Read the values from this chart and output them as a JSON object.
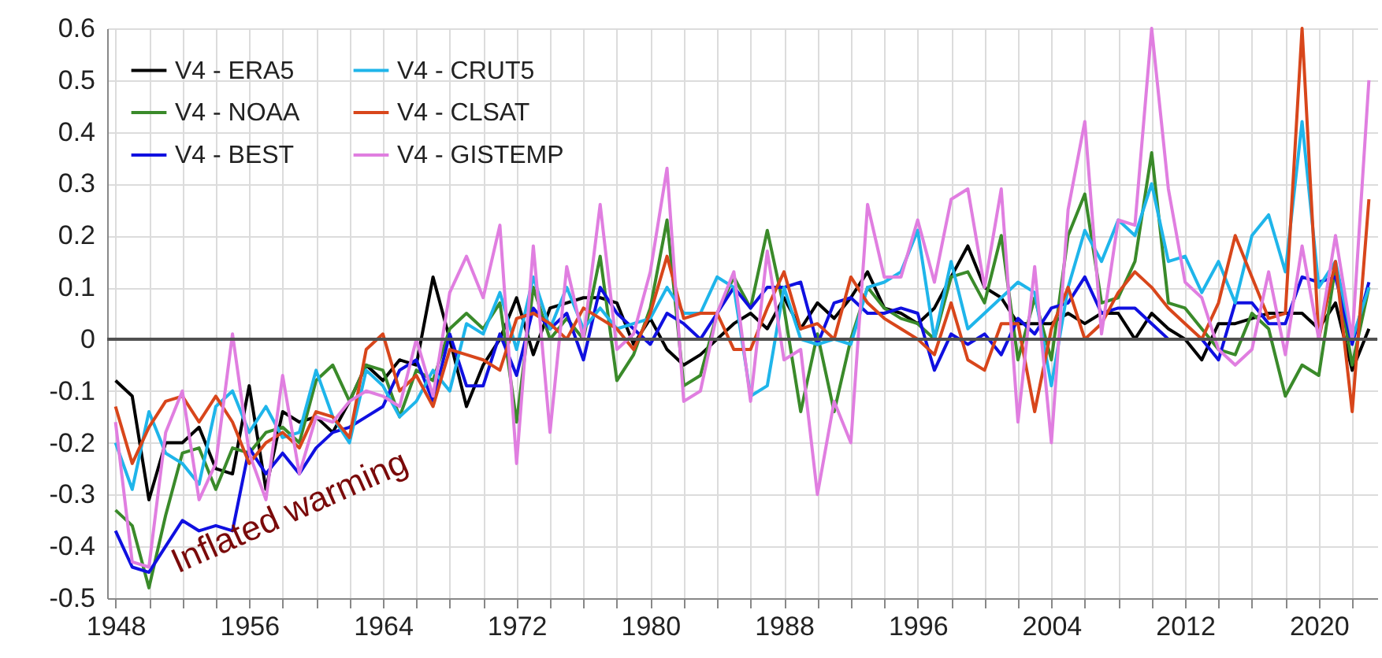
{
  "chart_data": {
    "type": "line",
    "x": [
      1948,
      1949,
      1950,
      1951,
      1952,
      1953,
      1954,
      1955,
      1956,
      1957,
      1958,
      1959,
      1960,
      1961,
      1962,
      1963,
      1964,
      1965,
      1966,
      1967,
      1968,
      1969,
      1970,
      1971,
      1972,
      1973,
      1974,
      1975,
      1976,
      1977,
      1978,
      1979,
      1980,
      1981,
      1982,
      1983,
      1984,
      1985,
      1986,
      1987,
      1988,
      1989,
      1990,
      1991,
      1992,
      1993,
      1994,
      1995,
      1996,
      1997,
      1998,
      1999,
      2000,
      2001,
      2002,
      2003,
      2004,
      2005,
      2006,
      2007,
      2008,
      2009,
      2010,
      2011,
      2012,
      2013,
      2014,
      2015,
      2016,
      2017,
      2018,
      2019,
      2020,
      2021,
      2022,
      2023
    ],
    "series": [
      {
        "name": "V4  - ERA5",
        "color": "#000000",
        "values": [
          -0.08,
          -0.11,
          -0.31,
          -0.2,
          -0.2,
          -0.17,
          -0.25,
          -0.26,
          -0.09,
          -0.29,
          -0.14,
          -0.16,
          -0.15,
          -0.18,
          -0.12,
          -0.05,
          -0.08,
          -0.04,
          -0.05,
          0.12,
          0.0,
          -0.13,
          -0.05,
          0.0,
          0.08,
          -0.03,
          0.06,
          0.07,
          0.08,
          0.08,
          0.07,
          -0.01,
          0.04,
          -0.02,
          -0.05,
          -0.03,
          0.0,
          0.03,
          0.05,
          0.02,
          0.08,
          0.02,
          0.07,
          0.04,
          0.08,
          0.13,
          0.06,
          0.05,
          0.03,
          0.06,
          0.12,
          0.18,
          0.1,
          0.08,
          0.03,
          0.03,
          0.03,
          0.05,
          0.03,
          0.05,
          0.05,
          0.0,
          0.05,
          0.02,
          0.0,
          -0.04,
          0.03,
          0.03,
          0.04,
          0.05,
          0.05,
          0.05,
          0.02,
          0.07,
          -0.06,
          0.02
        ]
      },
      {
        "name": "V4 - NOAA",
        "color": "#3a8a2a",
        "values": [
          -0.33,
          -0.36,
          -0.48,
          -0.34,
          -0.22,
          -0.21,
          -0.29,
          -0.21,
          -0.22,
          -0.18,
          -0.17,
          -0.2,
          -0.08,
          -0.05,
          -0.12,
          -0.05,
          -0.06,
          -0.15,
          -0.06,
          -0.08,
          0.02,
          0.05,
          0.02,
          0.07,
          -0.16,
          0.1,
          0.0,
          0.04,
          0.0,
          0.16,
          -0.08,
          -0.03,
          0.06,
          0.23,
          -0.09,
          -0.07,
          0.05,
          0.12,
          0.06,
          0.21,
          0.06,
          -0.14,
          0.01,
          -0.14,
          0.0,
          0.1,
          0.06,
          0.04,
          0.03,
          0.0,
          0.12,
          0.13,
          0.07,
          0.2,
          -0.04,
          0.08,
          -0.04,
          0.2,
          0.28,
          0.07,
          0.08,
          0.15,
          0.36,
          0.07,
          0.06,
          0.02,
          -0.02,
          -0.03,
          0.05,
          0.02,
          -0.11,
          -0.05,
          -0.07,
          0.14,
          -0.05,
          0.1
        ]
      },
      {
        "name": "V4 - BEST",
        "color": "#1010e0",
        "values": [
          -0.37,
          -0.44,
          -0.45,
          -0.4,
          -0.35,
          -0.37,
          -0.36,
          -0.37,
          -0.21,
          -0.26,
          -0.22,
          -0.26,
          -0.21,
          -0.18,
          -0.17,
          -0.15,
          -0.13,
          -0.06,
          -0.04,
          -0.12,
          0.01,
          -0.09,
          -0.09,
          0.01,
          -0.07,
          0.06,
          0.02,
          0.05,
          -0.04,
          0.1,
          0.05,
          0.02,
          -0.01,
          0.05,
          0.03,
          0.0,
          0.05,
          0.1,
          0.06,
          0.1,
          0.1,
          0.11,
          -0.01,
          0.07,
          0.08,
          0.05,
          0.05,
          0.06,
          0.05,
          -0.06,
          0.01,
          -0.01,
          0.01,
          -0.03,
          0.04,
          0.01,
          0.06,
          0.07,
          0.12,
          0.05,
          0.06,
          0.06,
          0.03,
          0.0,
          0.0,
          0.0,
          -0.04,
          0.07,
          0.07,
          0.03,
          0.03,
          0.12,
          0.11,
          0.12,
          -0.01,
          0.11
        ]
      },
      {
        "name": "V4 - CRUT5",
        "color": "#1fb5ea",
        "values": [
          -0.2,
          -0.29,
          -0.14,
          -0.22,
          -0.24,
          -0.28,
          -0.13,
          -0.1,
          -0.18,
          -0.13,
          -0.19,
          -0.18,
          -0.06,
          -0.15,
          -0.2,
          -0.06,
          -0.09,
          -0.15,
          -0.12,
          -0.06,
          -0.1,
          0.03,
          0.01,
          0.09,
          -0.02,
          0.12,
          0.02,
          0.1,
          0.02,
          0.06,
          0.02,
          0.03,
          0.04,
          0.1,
          0.05,
          0.05,
          0.12,
          0.1,
          -0.11,
          -0.09,
          0.1,
          0.0,
          -0.01,
          0.0,
          -0.01,
          0.1,
          0.11,
          0.13,
          0.21,
          0.0,
          0.15,
          0.02,
          0.05,
          0.08,
          0.11,
          0.09,
          -0.09,
          0.1,
          0.21,
          0.15,
          0.23,
          0.2,
          0.3,
          0.15,
          0.16,
          0.09,
          0.15,
          0.07,
          0.2,
          0.24,
          0.13,
          0.42,
          0.1,
          0.15,
          0.0,
          0.1
        ]
      },
      {
        "name": "V4 - CLSAT",
        "color": "#d8461b",
        "values": [
          -0.13,
          -0.24,
          -0.17,
          -0.12,
          -0.11,
          -0.16,
          -0.11,
          -0.16,
          -0.24,
          -0.2,
          -0.18,
          -0.21,
          -0.14,
          -0.15,
          -0.19,
          -0.02,
          0.01,
          -0.1,
          -0.07,
          -0.13,
          -0.02,
          -0.03,
          -0.04,
          -0.06,
          0.04,
          0.05,
          0.03,
          0.0,
          0.06,
          0.04,
          0.02,
          -0.02,
          0.05,
          0.16,
          0.04,
          0.05,
          0.05,
          -0.02,
          -0.02,
          0.06,
          0.13,
          0.02,
          0.03,
          0.0,
          0.12,
          0.07,
          0.04,
          0.02,
          0.0,
          -0.03,
          0.07,
          -0.04,
          -0.06,
          0.03,
          0.03,
          -0.14,
          0.02,
          0.1,
          0.0,
          0.03,
          0.09,
          0.13,
          0.1,
          0.06,
          0.03,
          0.0,
          0.07,
          0.2,
          0.12,
          0.04,
          0.05,
          0.6,
          0.0,
          0.15,
          -0.14,
          0.27
        ]
      },
      {
        "name": "V4 - GISTEMP",
        "color": "#e07ee0",
        "values": [
          -0.16,
          -0.43,
          -0.44,
          -0.18,
          -0.1,
          -0.31,
          -0.24,
          0.01,
          -0.22,
          -0.31,
          -0.07,
          -0.26,
          -0.15,
          -0.16,
          -0.12,
          -0.1,
          -0.11,
          -0.13,
          0.0,
          -0.11,
          0.09,
          0.16,
          0.08,
          0.22,
          -0.24,
          0.18,
          -0.18,
          0.14,
          0.0,
          0.26,
          -0.02,
          0.01,
          0.13,
          0.33,
          -0.12,
          -0.1,
          0.05,
          0.13,
          -0.12,
          0.17,
          -0.04,
          -0.02,
          -0.3,
          -0.12,
          -0.2,
          0.26,
          0.12,
          0.12,
          0.23,
          0.11,
          0.27,
          0.29,
          0.1,
          0.29,
          -0.16,
          0.14,
          -0.2,
          0.25,
          0.42,
          0.01,
          0.23,
          0.22,
          0.6,
          0.29,
          0.11,
          0.08,
          -0.02,
          -0.05,
          -0.02,
          0.13,
          -0.03,
          0.18,
          0.0,
          0.2,
          0.0,
          0.5
        ]
      }
    ],
    "xlim": [
      1947.5,
      2023.5
    ],
    "xticks": [
      1948,
      {
        "value": 1950,
        "label": null
      },
      {
        "value": 1952,
        "label": null
      },
      {
        "value": 1954,
        "label": null
      },
      1956,
      {
        "value": 1958,
        "label": null
      },
      {
        "value": 1960,
        "label": null
      },
      {
        "value": 1962,
        "label": null
      },
      1964,
      {
        "value": 1966,
        "label": null
      },
      {
        "value": 1968,
        "label": null
      },
      {
        "value": 1970,
        "label": null
      },
      1972,
      {
        "value": 1974,
        "label": null
      },
      {
        "value": 1976,
        "label": null
      },
      {
        "value": 1978,
        "label": null
      },
      1980,
      {
        "value": 1982,
        "label": null
      },
      {
        "value": 1984,
        "label": null
      },
      {
        "value": 1986,
        "label": null
      },
      1988,
      {
        "value": 1990,
        "label": null
      },
      {
        "value": 1992,
        "label": null
      },
      {
        "value": 1994,
        "label": null
      },
      1996,
      {
        "value": 1998,
        "label": null
      },
      {
        "value": 2000,
        "label": null
      },
      {
        "value": 2002,
        "label": null
      },
      2004,
      {
        "value": 2006,
        "label": null
      },
      {
        "value": 2008,
        "label": null
      },
      {
        "value": 2010,
        "label": null
      },
      2012,
      {
        "value": 2014,
        "label": null
      },
      {
        "value": 2016,
        "label": null
      },
      {
        "value": 2018,
        "label": null
      },
      2020,
      {
        "value": 2022,
        "label": null
      }
    ],
    "ylim": [
      -0.5,
      0.6
    ],
    "yticks": [
      -0.5,
      -0.4,
      -0.3,
      -0.2,
      -0.1,
      0,
      0.1,
      0.2,
      0.3,
      0.4,
      0.5,
      0.6
    ],
    "ref_lines": [
      {
        "axis": "y",
        "value": 0,
        "color": "#505050"
      }
    ],
    "annotations": [
      "Inflated warming"
    ],
    "grid": true,
    "legend": "top left",
    "line_style": "solid"
  }
}
